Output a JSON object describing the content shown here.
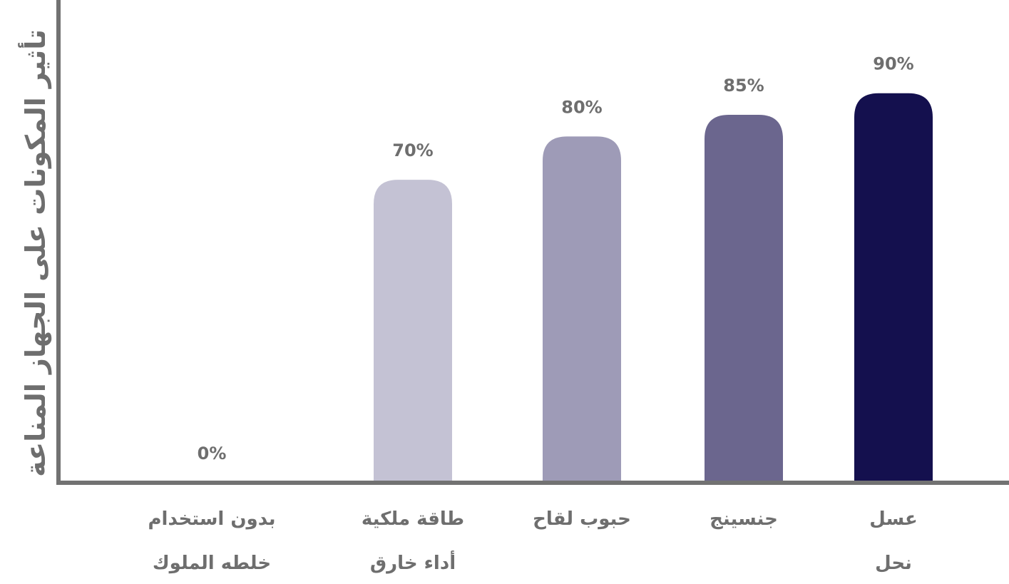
{
  "chart_data": {
    "type": "bar",
    "ylabel": "تأثير المكونات على الجهاز المناعة",
    "categories": [
      [
        "بدون استخدام",
        "خلطه الملوك"
      ],
      [
        "طاقة ملكية",
        "أداء خارق"
      ],
      [
        "حبوب لقاح"
      ],
      [
        "جنسينج"
      ],
      [
        "عسل",
        "نحل"
      ]
    ],
    "values": [
      0,
      70,
      80,
      85,
      90
    ],
    "data_labels": [
      "0%",
      "70%",
      "80%",
      "85%",
      "90%"
    ],
    "ylim": [
      0,
      100
    ],
    "grid": false,
    "legend": "none",
    "colors": [
      "#c4c2d4",
      "#c4c2d4",
      "#9e9bb7",
      "#6b668e",
      "#14104e"
    ],
    "axis_color": "#727272",
    "label_color": "#6e6e6e"
  }
}
